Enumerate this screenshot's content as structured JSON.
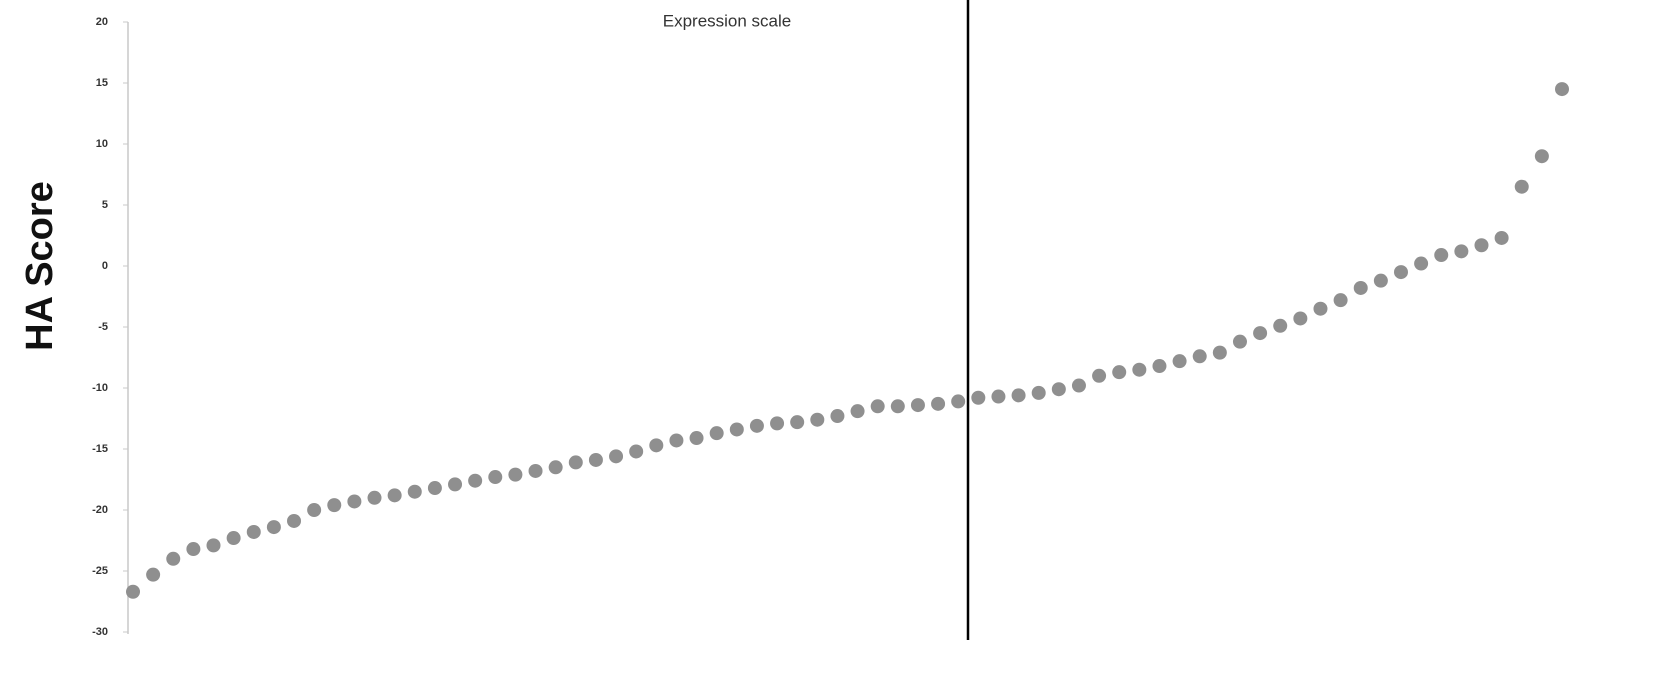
{
  "chart_data": {
    "type": "scatter",
    "title": "Expression scale",
    "y_label": "HA Score",
    "color": "#8f8f8f",
    "ylim": [
      -30,
      20
    ],
    "yticks": [
      20,
      15,
      10,
      5,
      0,
      -5,
      -10,
      -15,
      -20,
      -25,
      -30
    ],
    "values": [
      -26.7,
      -25.3,
      -24.0,
      -23.2,
      -22.9,
      -22.3,
      -21.8,
      -21.4,
      -20.9,
      -20.0,
      -19.6,
      -19.3,
      -19.0,
      -18.8,
      -18.5,
      -18.2,
      -17.9,
      -17.6,
      -17.3,
      -17.1,
      -16.8,
      -16.5,
      -16.1,
      -15.9,
      -15.6,
      -15.2,
      -14.7,
      -14.3,
      -14.1,
      -13.7,
      -13.4,
      -13.1,
      -12.9,
      -12.8,
      -12.6,
      -12.3,
      -11.9,
      -11.5,
      -11.5,
      -11.4,
      -11.3,
      -11.1,
      -10.8,
      -10.7,
      -10.6,
      -10.4,
      -10.1,
      -9.8,
      -9.0,
      -8.7,
      -8.5,
      -8.2,
      -7.8,
      -7.4,
      -7.1,
      -6.2,
      -5.5,
      -4.9,
      -4.3,
      -3.5,
      -2.8,
      -1.8,
      -1.2,
      -0.5,
      0.2,
      0.9,
      1.2,
      1.7,
      2.3,
      6.5,
      9.0,
      14.5
    ]
  }
}
